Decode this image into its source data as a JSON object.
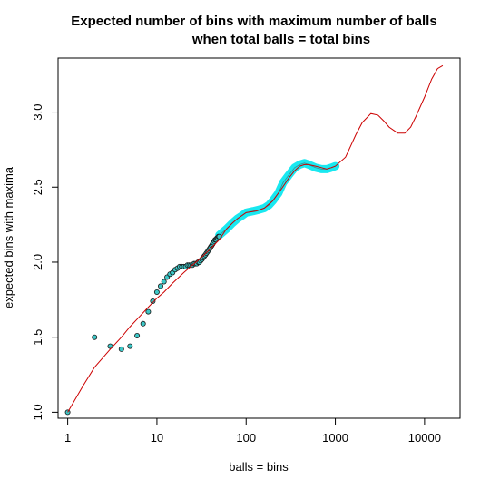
{
  "chart_data": {
    "type": "scatter",
    "title_line1": "Expected number of bins with maximum number of balls",
    "title_line2": "when total balls = total bins",
    "xlabel": "balls = bins",
    "ylabel": "expected bins with maxima",
    "x_scale": "log10",
    "xlim": [
      0.78,
      25000
    ],
    "ylim": [
      0.96,
      3.36
    ],
    "x_ticks": [
      1,
      10,
      100,
      1000,
      10000
    ],
    "x_tick_labels": [
      "1",
      "10",
      "100",
      "1000",
      "10000"
    ],
    "y_ticks": [
      1.0,
      1.5,
      2.0,
      2.5,
      3.0
    ],
    "y_tick_labels": [
      "1.0",
      "1.5",
      "2.0",
      "2.5",
      "3.0"
    ],
    "grid": false,
    "series": [
      {
        "kind": "points",
        "color": "#3cc7c7",
        "edge": "#1a1a1a",
        "x": [
          1,
          2,
          3,
          4,
          5,
          6,
          7,
          8,
          9,
          10,
          11,
          12,
          13,
          14,
          15,
          16,
          17,
          18,
          19,
          20,
          21,
          22,
          23,
          24,
          25,
          26,
          27,
          28,
          29,
          30,
          31,
          32,
          33,
          34,
          35,
          36,
          37,
          38,
          39,
          40,
          41,
          42,
          43,
          44,
          45,
          46,
          47,
          48,
          49,
          50
        ],
        "y": [
          1.0,
          1.5,
          1.44,
          1.42,
          1.44,
          1.51,
          1.59,
          1.67,
          1.74,
          1.8,
          1.84,
          1.87,
          1.9,
          1.92,
          1.93,
          1.95,
          1.96,
          1.97,
          1.97,
          1.97,
          1.97,
          1.98,
          1.98,
          1.98,
          1.98,
          1.99,
          1.99,
          1.99,
          2.0,
          2.0,
          2.01,
          2.02,
          2.03,
          2.04,
          2.05,
          2.06,
          2.07,
          2.08,
          2.09,
          2.1,
          2.11,
          2.12,
          2.13,
          2.14,
          2.15,
          2.15,
          2.16,
          2.16,
          2.17,
          2.17
        ]
      },
      {
        "kind": "band",
        "color": "#00e5ee",
        "x": [
          50,
          60,
          70,
          80,
          90,
          100,
          120,
          140,
          160,
          180,
          200,
          230,
          260,
          300,
          350,
          400,
          450,
          500,
          600,
          700,
          800,
          900,
          1000
        ],
        "y": [
          2.18,
          2.22,
          2.26,
          2.29,
          2.31,
          2.33,
          2.34,
          2.35,
          2.36,
          2.38,
          2.41,
          2.46,
          2.53,
          2.58,
          2.63,
          2.65,
          2.66,
          2.65,
          2.63,
          2.62,
          2.62,
          2.63,
          2.64
        ]
      },
      {
        "kind": "line",
        "color": "#cc0000",
        "x": [
          1,
          1.5,
          2,
          3,
          4,
          5,
          6,
          8,
          10,
          12,
          15,
          20,
          25,
          30,
          40,
          50,
          60,
          70,
          80,
          100,
          130,
          160,
          200,
          250,
          300,
          350,
          400,
          450,
          500,
          600,
          700,
          800,
          900,
          1000,
          1300,
          1700,
          2000,
          2500,
          3000,
          3500,
          4000,
          5000,
          6000,
          7000,
          8000,
          10000,
          12000,
          14000,
          16000
        ],
        "y": [
          1.0,
          1.18,
          1.3,
          1.42,
          1.5,
          1.57,
          1.62,
          1.7,
          1.76,
          1.8,
          1.86,
          1.93,
          1.98,
          2.02,
          2.09,
          2.15,
          2.22,
          2.26,
          2.29,
          2.33,
          2.34,
          2.36,
          2.41,
          2.49,
          2.56,
          2.61,
          2.64,
          2.65,
          2.65,
          2.64,
          2.63,
          2.62,
          2.63,
          2.64,
          2.7,
          2.85,
          2.93,
          2.99,
          2.98,
          2.94,
          2.9,
          2.86,
          2.86,
          2.9,
          2.97,
          3.1,
          3.22,
          3.29,
          3.31
        ]
      }
    ]
  }
}
